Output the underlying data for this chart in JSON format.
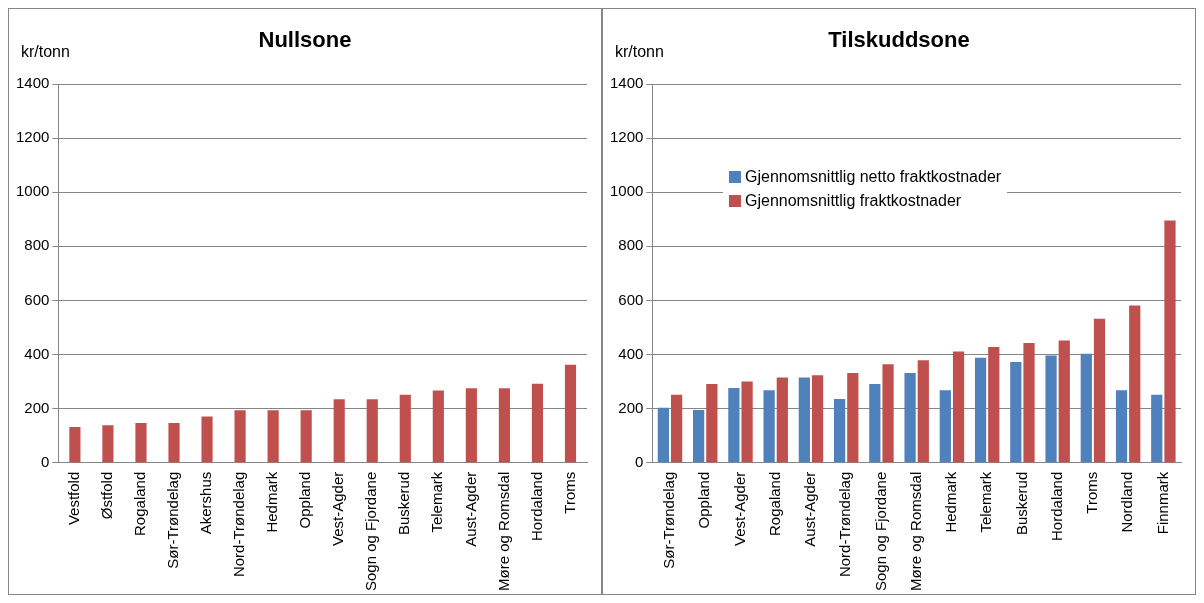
{
  "chart_data": [
    {
      "type": "bar",
      "title": "Nullsone",
      "ylabel": "kr/tonn",
      "categories": [
        "Vestfold",
        "Østfold",
        "Rogaland",
        "Sør-Trøndelag",
        "Akershus",
        "Nord-Trøndelag",
        "Hedmark",
        "Oppland",
        "Vest-Agder",
        "Sogn og Fjordane",
        "Buskerud",
        "Telemark",
        "Aust-Agder",
        "Møre og Romsdal",
        "Hordaland",
        "Troms"
      ],
      "series": [
        {
          "color": "#c0504d",
          "values": [
            132,
            139,
            147,
            147,
            171,
            194,
            194,
            194,
            235,
            235,
            251,
            267,
            275,
            275,
            292,
            362
          ]
        }
      ],
      "ylim": [
        0,
        1400
      ],
      "yticks": [
        0,
        200,
        400,
        600,
        800,
        1000,
        1200,
        1400
      ],
      "grid": "y",
      "legend": false
    },
    {
      "type": "bar",
      "title": "Tilskuddsone",
      "ylabel": "kr/tonn",
      "categories": [
        "Sør-Trøndelag",
        "Oppland",
        "Vest-Agder",
        "Rogaland",
        "Aust-Agder",
        "Nord-Trøndelag",
        "Sogn og Fjordane",
        "Møre og Romsdal",
        "Hedmark",
        "Telemark",
        "Buskerud",
        "Hordaland",
        "Troms",
        "Nordland",
        "Finnmark"
      ],
      "series": [
        {
          "name": "Gjennomsnittlig netto fraktkostnader",
          "color": "#4f81bd",
          "values": [
            203,
            195,
            276,
            268,
            315,
            236,
            291,
            332,
            268,
            388,
            372,
            396,
            403,
            268,
            251
          ]
        },
        {
          "name": "Gjennomsnittlig fraktkostnader",
          "color": "#c0504d",
          "values": [
            251,
            291,
            300,
            315,
            323,
            332,
            364,
            379,
            411,
            428,
            443,
            452,
            532,
            581,
            895
          ]
        }
      ],
      "ylim": [
        0,
        1400
      ],
      "yticks": [
        0,
        200,
        400,
        600,
        800,
        1000,
        1200,
        1400
      ],
      "grid": "y",
      "legend": "top left"
    }
  ]
}
